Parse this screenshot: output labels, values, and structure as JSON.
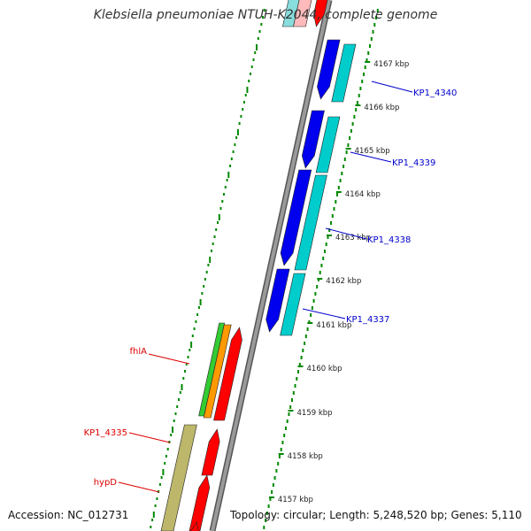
{
  "title": "Klebsiella pneumoniae NTUH-K2044, complete genome",
  "accession": "Accession: NC_012731",
  "summary": "Topology: circular; Length: 5,248,520 bp; Genes: 5,110",
  "colors": {
    "backbone": "#888888",
    "forward_gene": "#0000ee",
    "reverse_gene": "#00cccc",
    "red_gene": "#ff0000",
    "green_gene": "#33cc33",
    "orange_gene": "#ff9900",
    "olive_gene": "#bdb76b",
    "label_blue": "#0000cc",
    "label_red": "#dd0000",
    "tick_green": "#008800"
  },
  "ruler": [
    {
      "id": "4167",
      "text": "4167 kbp"
    },
    {
      "id": "4166",
      "text": "4166 kbp"
    },
    {
      "id": "4165",
      "text": "4165 kbp"
    },
    {
      "id": "4164",
      "text": "4164 kbp"
    },
    {
      "id": "4163",
      "text": "4163 kbp"
    },
    {
      "id": "4162",
      "text": "4162 kbp"
    },
    {
      "id": "4161",
      "text": "4161 kbp"
    },
    {
      "id": "4160",
      "text": "4160 kbp"
    },
    {
      "id": "4159",
      "text": "4159 kbp"
    },
    {
      "id": "4158",
      "text": "4158 kbp"
    },
    {
      "id": "4157",
      "text": "4157 kbp"
    }
  ],
  "gene_labels": [
    {
      "id": "kp1-4340",
      "text": "KP1_4340",
      "side": "right"
    },
    {
      "id": "kp1-4339",
      "text": "KP1_4339",
      "side": "right"
    },
    {
      "id": "kp1-4338",
      "text": "KP1_4338",
      "side": "right"
    },
    {
      "id": "kp1-4337",
      "text": "KP1_4337",
      "side": "right"
    },
    {
      "id": "fhla",
      "text": "fhlA",
      "side": "left"
    },
    {
      "id": "kp1-4335",
      "text": "KP1_4335",
      "side": "left"
    },
    {
      "id": "hypd",
      "text": "hypD",
      "side": "left"
    }
  ]
}
